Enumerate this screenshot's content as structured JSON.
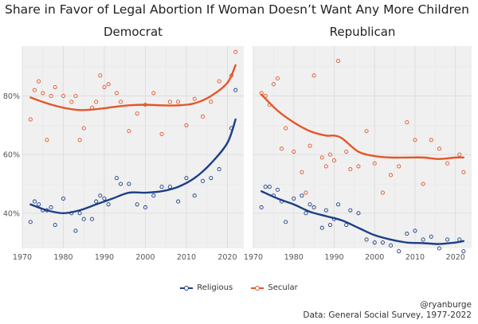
{
  "title": "Share in Favor of Legal Abortion If Woman Doesn’t Want Any More Children",
  "credit_handle": "@ryanburge",
  "credit_source": "Data: General Social Survey, 1977-2022",
  "colors": {
    "Religious": "#1c3f87",
    "Secular": "#e4562a",
    "grid": "#e6e6e6",
    "panel_bg": "#f0f0f0"
  },
  "legend": [
    {
      "name": "Religious",
      "color": "#1c3f87"
    },
    {
      "name": "Secular",
      "color": "#e4562a"
    }
  ],
  "chart_data": [
    {
      "type": "scatter",
      "title": "Democrat",
      "xlim": [
        1970,
        2024
      ],
      "ylim": [
        28,
        97
      ],
      "x_ticks": [
        1970,
        1980,
        1990,
        2000,
        2010,
        2020
      ],
      "y_ticks": [
        40,
        60,
        80
      ],
      "y_tick_labels": [
        "40%",
        "60%",
        "80%"
      ],
      "grid": true,
      "series": [
        {
          "name": "Religious",
          "points": [
            [
              1972,
              37
            ],
            [
              1973,
              44
            ],
            [
              1974,
              43
            ],
            [
              1975,
              41
            ],
            [
              1976,
              41
            ],
            [
              1977,
              42
            ],
            [
              1978,
              36
            ],
            [
              1980,
              45
            ],
            [
              1982,
              40
            ],
            [
              1983,
              34
            ],
            [
              1984,
              40
            ],
            [
              1985,
              38
            ],
            [
              1987,
              38
            ],
            [
              1988,
              44
            ],
            [
              1989,
              46
            ],
            [
              1990,
              45
            ],
            [
              1991,
              43
            ],
            [
              1993,
              52
            ],
            [
              1994,
              50
            ],
            [
              1996,
              50
            ],
            [
              1998,
              43
            ],
            [
              2000,
              42
            ],
            [
              2002,
              46
            ],
            [
              2004,
              49
            ],
            [
              2006,
              49
            ],
            [
              2008,
              44
            ],
            [
              2010,
              52
            ],
            [
              2012,
              46
            ],
            [
              2014,
              51
            ],
            [
              2016,
              52
            ],
            [
              2018,
              55
            ],
            [
              2021,
              69
            ],
            [
              2022,
              82
            ]
          ],
          "trend": [
            [
              1972,
              43
            ],
            [
              1976,
              41
            ],
            [
              1980,
              40
            ],
            [
              1984,
              41
            ],
            [
              1988,
              43
            ],
            [
              1992,
              45
            ],
            [
              1996,
              47
            ],
            [
              2000,
              47
            ],
            [
              2004,
              47.5
            ],
            [
              2008,
              49
            ],
            [
              2012,
              52
            ],
            [
              2016,
              57
            ],
            [
              2020,
              64
            ],
            [
              2022,
              72
            ]
          ]
        },
        {
          "name": "Secular",
          "points": [
            [
              1972,
              72
            ],
            [
              1973,
              82
            ],
            [
              1974,
              85
            ],
            [
              1975,
              81
            ],
            [
              1976,
              65
            ],
            [
              1977,
              80
            ],
            [
              1978,
              83
            ],
            [
              1980,
              80
            ],
            [
              1982,
              78
            ],
            [
              1983,
              80
            ],
            [
              1984,
              65
            ],
            [
              1985,
              69
            ],
            [
              1987,
              76
            ],
            [
              1988,
              78
            ],
            [
              1989,
              87
            ],
            [
              1990,
              83
            ],
            [
              1991,
              84
            ],
            [
              1993,
              81
            ],
            [
              1994,
              78
            ],
            [
              1996,
              68
            ],
            [
              1998,
              74
            ],
            [
              2000,
              77
            ],
            [
              2002,
              81
            ],
            [
              2004,
              67
            ],
            [
              2006,
              78
            ],
            [
              2008,
              78
            ],
            [
              2010,
              70
            ],
            [
              2012,
              79
            ],
            [
              2014,
              73
            ],
            [
              2016,
              78
            ],
            [
              2018,
              85
            ],
            [
              2021,
              87
            ],
            [
              2022,
              95
            ]
          ],
          "trend": [
            [
              1972,
              79.5
            ],
            [
              1976,
              77.5
            ],
            [
              1980,
              76
            ],
            [
              1984,
              75.2
            ],
            [
              1988,
              75.5
            ],
            [
              1992,
              76.2
            ],
            [
              1996,
              76.8
            ],
            [
              2000,
              77
            ],
            [
              2004,
              76.8
            ],
            [
              2008,
              76.8
            ],
            [
              2012,
              77.5
            ],
            [
              2016,
              80
            ],
            [
              2020,
              84.5
            ],
            [
              2022,
              90.5
            ]
          ]
        }
      ]
    },
    {
      "type": "scatter",
      "title": "Republican",
      "xlim": [
        1970,
        2024
      ],
      "ylim": [
        28,
        97
      ],
      "x_ticks": [
        1970,
        1980,
        1990,
        2000,
        2010,
        2020
      ],
      "y_ticks": [
        40,
        60,
        80
      ],
      "y_tick_labels": [
        "40%",
        "60%",
        "80%"
      ],
      "grid": true,
      "series": [
        {
          "name": "Religious",
          "points": [
            [
              1972,
              42
            ],
            [
              1973,
              49
            ],
            [
              1974,
              49
            ],
            [
              1975,
              46
            ],
            [
              1976,
              48
            ],
            [
              1977,
              44
            ],
            [
              1978,
              37
            ],
            [
              1980,
              45
            ],
            [
              1982,
              46
            ],
            [
              1983,
              40
            ],
            [
              1984,
              43
            ],
            [
              1985,
              42
            ],
            [
              1987,
              35
            ],
            [
              1988,
              41
            ],
            [
              1989,
              36
            ],
            [
              1990,
              38
            ],
            [
              1991,
              43
            ],
            [
              1993,
              36
            ],
            [
              1994,
              41
            ],
            [
              1996,
              40
            ],
            [
              1998,
              31
            ],
            [
              2000,
              30
            ],
            [
              2002,
              30
            ],
            [
              2004,
              29
            ],
            [
              2006,
              27
            ],
            [
              2008,
              33
            ],
            [
              2010,
              34
            ],
            [
              2012,
              31
            ],
            [
              2014,
              32
            ],
            [
              2016,
              28
            ],
            [
              2018,
              31
            ],
            [
              2021,
              31
            ],
            [
              2022,
              27
            ]
          ],
          "trend": [
            [
              1972,
              47.5
            ],
            [
              1976,
              45
            ],
            [
              1980,
              43
            ],
            [
              1984,
              40.5
            ],
            [
              1988,
              39
            ],
            [
              1992,
              37.5
            ],
            [
              1996,
              35
            ],
            [
              2000,
              32.5
            ],
            [
              2004,
              31
            ],
            [
              2008,
              30
            ],
            [
              2012,
              29.8
            ],
            [
              2016,
              29.5
            ],
            [
              2020,
              30
            ],
            [
              2022,
              30.5
            ]
          ]
        },
        {
          "name": "Secular",
          "points": [
            [
              1972,
              81
            ],
            [
              1973,
              80
            ],
            [
              1974,
              77
            ],
            [
              1975,
              84
            ],
            [
              1976,
              86
            ],
            [
              1977,
              62
            ],
            [
              1978,
              69
            ],
            [
              1980,
              61
            ],
            [
              1982,
              54
            ],
            [
              1983,
              47
            ],
            [
              1984,
              63
            ],
            [
              1985,
              87
            ],
            [
              1987,
              59
            ],
            [
              1988,
              56
            ],
            [
              1989,
              60
            ],
            [
              1990,
              58
            ],
            [
              1991,
              92
            ],
            [
              1993,
              61
            ],
            [
              1994,
              55
            ],
            [
              1996,
              56
            ],
            [
              1998,
              68
            ],
            [
              2000,
              57
            ],
            [
              2002,
              47
            ],
            [
              2004,
              53
            ],
            [
              2006,
              56
            ],
            [
              2008,
              71
            ],
            [
              2010,
              65
            ],
            [
              2012,
              50
            ],
            [
              2014,
              65
            ],
            [
              2016,
              62
            ],
            [
              2018,
              57
            ],
            [
              2021,
              60
            ],
            [
              2022,
              54
            ]
          ],
          "trend": [
            [
              1972,
              80.5
            ],
            [
              1976,
              75
            ],
            [
              1980,
              71
            ],
            [
              1984,
              68
            ],
            [
              1988,
              66.5
            ],
            [
              1990,
              66.5
            ],
            [
              1992,
              65.5
            ],
            [
              1996,
              61
            ],
            [
              2000,
              59.5
            ],
            [
              2004,
              59
            ],
            [
              2008,
              59
            ],
            [
              2012,
              59
            ],
            [
              2016,
              58.5
            ],
            [
              2020,
              59
            ],
            [
              2022,
              59
            ]
          ]
        }
      ]
    }
  ]
}
